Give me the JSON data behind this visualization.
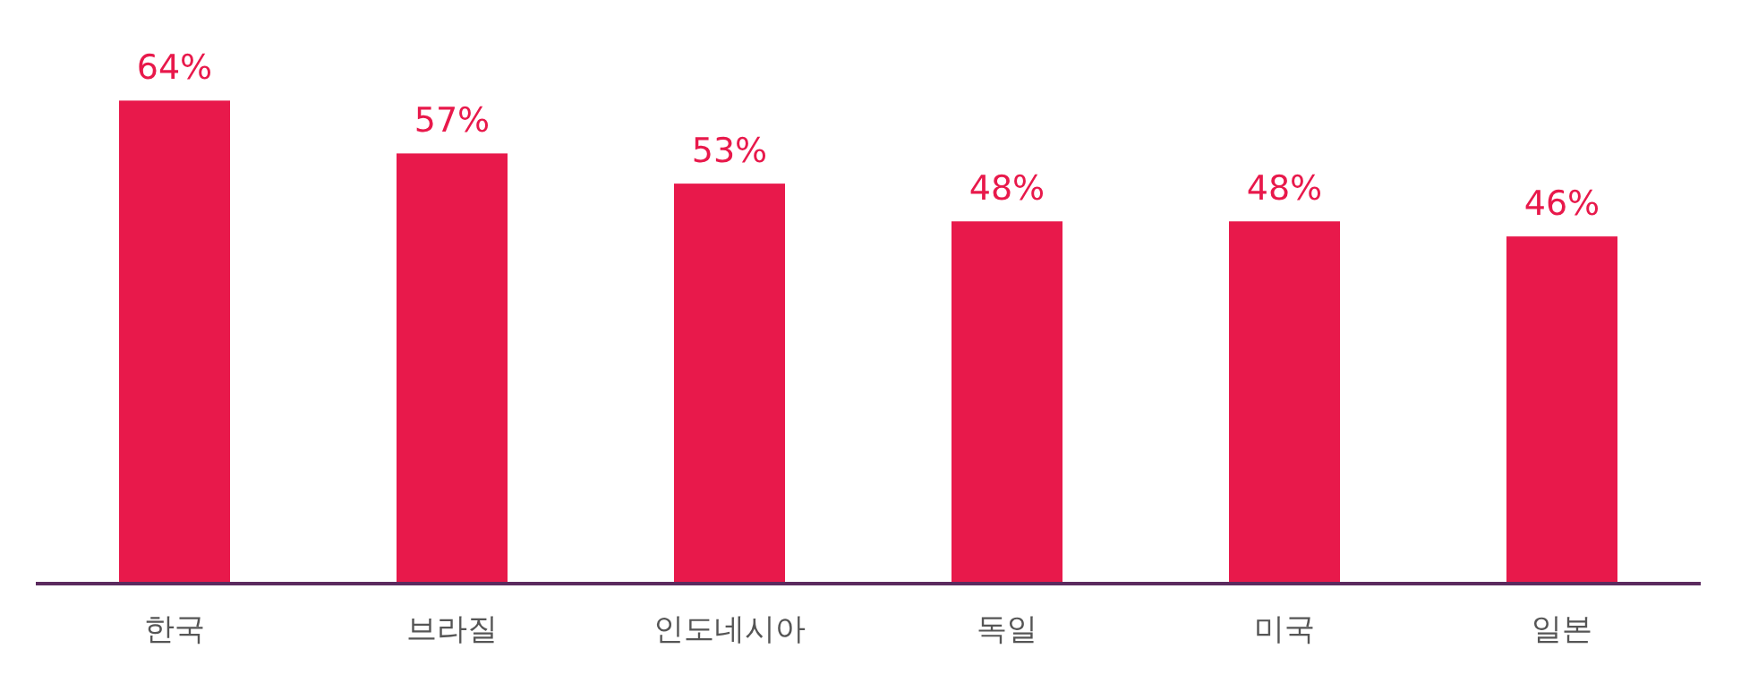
{
  "chart_data": {
    "type": "bar",
    "categories": [
      "한국",
      "브라질",
      "인도네시아",
      "독일",
      "미국",
      "일본"
    ],
    "values": [
      64,
      57,
      53,
      48,
      48,
      46
    ],
    "value_labels": [
      "64%",
      "57%",
      "53%",
      "48%",
      "48%",
      "46%"
    ],
    "color": "#e8194b"
  }
}
